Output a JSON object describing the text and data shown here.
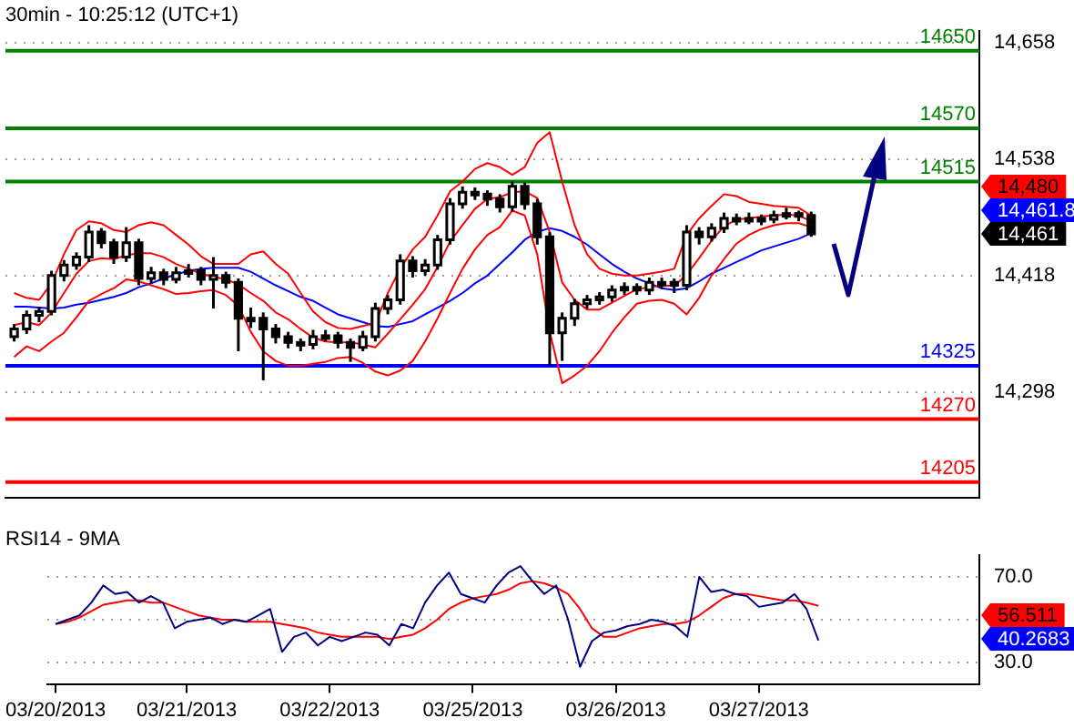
{
  "chart_data": [
    {
      "type": "candlestick",
      "title": "30min - 10:25:12 (UTC+1)",
      "categories": [
        null,
        null,
        null,
        null,
        null,
        null,
        null,
        null,
        null,
        null,
        null,
        null,
        null,
        null,
        null,
        null,
        null,
        null,
        null,
        null,
        null,
        null,
        null,
        null,
        null,
        null,
        null,
        null,
        null,
        null,
        null,
        null,
        null,
        null,
        null,
        null,
        null,
        null,
        null,
        null,
        null,
        null,
        null,
        null,
        null,
        null,
        null,
        null,
        null,
        null,
        null,
        null,
        null,
        null,
        null,
        null,
        null,
        null,
        null,
        null,
        null,
        null,
        null,
        null,
        null
      ],
      "ohlc": [
        [
          14355,
          14368,
          14350,
          14363
        ],
        [
          14363,
          14382,
          14358,
          14377
        ],
        [
          14377,
          14386,
          14370,
          14381
        ],
        [
          14381,
          14423,
          14377,
          14418
        ],
        [
          14418,
          14434,
          14412,
          14429
        ],
        [
          14429,
          14442,
          14424,
          14437
        ],
        [
          14437,
          14470,
          14432,
          14463
        ],
        [
          14463,
          14467,
          14446,
          14452
        ],
        [
          14452,
          14456,
          14430,
          14437
        ],
        [
          14437,
          14468,
          14432,
          14452
        ],
        [
          14452,
          14456,
          14408,
          14415
        ],
        [
          14415,
          14427,
          14410,
          14421
        ],
        [
          14421,
          14425,
          14408,
          14414
        ],
        [
          14414,
          14427,
          14410,
          14421
        ],
        [
          14421,
          14430,
          14416,
          14423
        ],
        [
          14423,
          14427,
          14408,
          14414
        ],
        [
          14414,
          14437,
          14384,
          14418
        ],
        [
          14418,
          14422,
          14405,
          14411
        ],
        [
          14411,
          14415,
          14340,
          14374
        ],
        [
          14374,
          14385,
          14364,
          14374
        ],
        [
          14374,
          14380,
          14310,
          14363
        ],
        [
          14363,
          14368,
          14348,
          14355
        ],
        [
          14355,
          14360,
          14343,
          14349
        ],
        [
          14349,
          14353,
          14340,
          14347
        ],
        [
          14347,
          14362,
          14342,
          14355
        ],
        [
          14355,
          14362,
          14350,
          14356
        ],
        [
          14356,
          14360,
          14343,
          14349
        ],
        [
          14349,
          14353,
          14329,
          14344
        ],
        [
          14344,
          14361,
          14340,
          14355
        ],
        [
          14355,
          14390,
          14350,
          14384
        ],
        [
          14384,
          14398,
          14378,
          14393
        ],
        [
          14393,
          14440,
          14388,
          14433
        ],
        [
          14433,
          14438,
          14416,
          14423
        ],
        [
          14423,
          14435,
          14418,
          14429
        ],
        [
          14429,
          14460,
          14424,
          14455
        ],
        [
          14455,
          14498,
          14450,
          14492
        ],
        [
          14492,
          14510,
          14487,
          14504
        ],
        [
          14504,
          14509,
          14496,
          14502
        ],
        [
          14502,
          14506,
          14490,
          14497
        ],
        [
          14497,
          14502,
          14483,
          14489
        ],
        [
          14489,
          14515,
          14484,
          14510
        ],
        [
          14510,
          14514,
          14486,
          14492
        ],
        [
          14492,
          14497,
          14450,
          14458
        ],
        [
          14458,
          14463,
          14325,
          14359
        ],
        [
          14359,
          14380,
          14330,
          14374
        ],
        [
          14374,
          14394,
          14366,
          14389
        ],
        [
          14389,
          14398,
          14384,
          14393
        ],
        [
          14393,
          14401,
          14388,
          14396
        ],
        [
          14396,
          14408,
          14391,
          14403
        ],
        [
          14403,
          14411,
          14398,
          14406
        ],
        [
          14406,
          14410,
          14398,
          14403
        ],
        [
          14403,
          14416,
          14398,
          14411
        ],
        [
          14411,
          14416,
          14404,
          14411
        ],
        [
          14411,
          14415,
          14400,
          14408
        ],
        [
          14408,
          14470,
          14403,
          14463
        ],
        [
          14463,
          14468,
          14450,
          14458
        ],
        [
          14458,
          14472,
          14453,
          14467
        ],
        [
          14467,
          14483,
          14462,
          14477
        ],
        [
          14477,
          14482,
          14470,
          14477
        ],
        [
          14477,
          14483,
          14471,
          14477
        ],
        [
          14477,
          14481,
          14470,
          14476
        ],
        [
          14476,
          14485,
          14472,
          14480
        ],
        [
          14480,
          14488,
          14476,
          14482
        ],
        [
          14482,
          14485,
          14474,
          14480
        ],
        [
          14480,
          14484,
          14458,
          14461
        ]
      ],
      "series": [
        {
          "type": "line",
          "color": "#ff0000",
          "values": [
            14400,
            14395,
            14393,
            14410,
            14440,
            14465,
            14474,
            14472,
            14465,
            14463,
            14470,
            14473,
            14470,
            14460,
            14450,
            14438,
            14430,
            14430,
            14430,
            14440,
            14443,
            14430,
            14420,
            14400,
            14381,
            14370,
            14364,
            14363,
            14366,
            14369,
            14400,
            14425,
            14445,
            14458,
            14480,
            14505,
            14515,
            14528,
            14534,
            14530,
            14522,
            14530,
            14555,
            14566,
            14515,
            14470,
            14440,
            14425,
            14420,
            14418,
            14418,
            14420,
            14422,
            14425,
            14460,
            14477,
            14490,
            14502,
            14500,
            14494,
            14492,
            14490,
            14489,
            14488,
            14480
          ]
        },
        {
          "type": "line",
          "color": "#ff0000",
          "values": [
            14367,
            14370,
            14367,
            14380,
            14400,
            14420,
            14433,
            14436,
            14435,
            14439,
            14441,
            14441,
            14437,
            14430,
            14425,
            14420,
            14417,
            14414,
            14409,
            14400,
            14392,
            14380,
            14373,
            14363,
            14354,
            14350,
            14349,
            14349,
            14347,
            14344,
            14358,
            14373,
            14388,
            14404,
            14427,
            14453,
            14470,
            14487,
            14497,
            14499,
            14504,
            14505,
            14498,
            14463,
            14411,
            14393,
            14383,
            14383,
            14390,
            14397,
            14404,
            14406,
            14408,
            14407,
            14419,
            14436,
            14454,
            14469,
            14476,
            14477,
            14479,
            14480,
            14481,
            14480,
            14474
          ]
        },
        {
          "type": "line",
          "color": "#ff0000",
          "values": [
            14334,
            14345,
            14340,
            14350,
            14359,
            14375,
            14392,
            14399,
            14405,
            14414,
            14412,
            14408,
            14404,
            14399,
            14400,
            14402,
            14403,
            14398,
            14387,
            14360,
            14340,
            14330,
            14325,
            14325,
            14327,
            14329,
            14333,
            14334,
            14328,
            14319,
            14315,
            14320,
            14330,
            14350,
            14374,
            14400,
            14425,
            14445,
            14460,
            14468,
            14485,
            14480,
            14440,
            14360,
            14307,
            14315,
            14325,
            14340,
            14359,
            14375,
            14389,
            14392,
            14393,
            14389,
            14378,
            14395,
            14418,
            14435,
            14451,
            14460,
            14466,
            14470,
            14472,
            14472,
            14468
          ]
        },
        {
          "type": "line",
          "color": "#0000ff",
          "values": [
            14386,
            14386,
            14385,
            14384,
            14385,
            14388,
            14390,
            14393,
            14396,
            14400,
            14406,
            14410,
            14415,
            14419,
            14423,
            14425,
            14426,
            14426,
            14426,
            14422,
            14415,
            14408,
            14402,
            14396,
            14392,
            14385,
            14378,
            14374,
            14370,
            14366,
            14365,
            14368,
            14371,
            14378,
            14385,
            14392,
            14400,
            14410,
            14418,
            14430,
            14442,
            14455,
            14463,
            14467,
            14464,
            14458,
            14450,
            14440,
            14430,
            14422,
            14415,
            14410,
            14405,
            14403,
            14405,
            14412,
            14420,
            14426,
            14432,
            14438,
            14444,
            14448,
            14452,
            14456,
            14461.8
          ]
        }
      ],
      "ylim": [
        14189,
        14670
      ],
      "yticks": [
        {
          "value": 14298,
          "label": "14,298"
        },
        {
          "value": 14418,
          "label": "14,418"
        },
        {
          "value": 14538,
          "label": "14,538"
        },
        {
          "value": 14658,
          "label": "14,658"
        }
      ],
      "grid": "y",
      "tick_labels": "y",
      "ref_lines": [
        {
          "axis": "y",
          "value": 14650,
          "label": "14650",
          "color": "#008000"
        },
        {
          "axis": "y",
          "value": 14570,
          "label": "14570",
          "color": "#008000"
        },
        {
          "axis": "y",
          "value": 14515,
          "label": "14515",
          "color": "#008000"
        },
        {
          "axis": "y",
          "value": 14325,
          "label": "14325",
          "color": "#0000ff"
        },
        {
          "axis": "y",
          "value": 14270,
          "label": "14270",
          "color": "#ff0000"
        },
        {
          "axis": "y",
          "value": 14205,
          "label": "14205",
          "color": "#ff0000"
        }
      ],
      "annotations": [
        "14,480",
        "14,461.8",
        "14,461"
      ]
    },
    {
      "type": "line",
      "title": "RSI14 - 9MA",
      "categories": [
        "03/20/2013",
        null,
        null,
        null,
        null,
        null,
        null,
        null,
        null,
        null,
        null,
        "03/21/2013",
        null,
        null,
        null,
        null,
        null,
        null,
        null,
        null,
        null,
        null,
        null,
        "03/22/2013",
        null,
        null,
        null,
        null,
        null,
        null,
        null,
        null,
        null,
        null,
        null,
        "03/25/2013",
        null,
        null,
        null,
        null,
        null,
        null,
        null,
        null,
        null,
        null,
        null,
        "03/26/2013",
        null,
        null,
        null,
        null,
        null,
        null,
        null,
        null,
        null,
        null,
        null,
        "03/27/2013",
        null,
        null,
        null,
        null,
        null
      ],
      "series": [
        {
          "color": "#000080",
          "values": [
            48,
            50,
            52,
            58,
            66,
            62,
            63,
            58,
            61,
            58,
            46,
            49,
            50,
            51,
            48,
            50,
            49,
            52,
            55,
            35,
            42,
            44,
            38,
            42,
            40,
            42,
            44,
            43,
            38,
            48,
            46,
            58,
            66,
            72,
            62,
            60,
            58,
            66,
            72,
            75,
            68,
            62,
            66,
            50,
            28,
            40,
            44,
            45,
            47,
            48,
            50,
            49,
            47,
            42,
            70,
            63,
            64,
            62,
            61,
            56,
            57,
            58,
            62,
            55,
            40.2683
          ]
        },
        {
          "color": "#ff0000",
          "values": [
            48,
            49,
            51,
            54,
            57,
            58,
            59,
            59,
            58,
            58,
            56,
            54,
            52,
            51,
            50,
            50,
            49,
            49,
            49,
            48,
            47,
            46,
            44,
            43,
            42,
            42,
            42,
            42,
            41,
            42,
            43,
            46,
            50,
            55,
            58,
            60,
            61,
            62,
            64,
            67,
            68,
            67,
            65,
            62,
            55,
            46,
            42,
            42,
            44,
            46,
            47,
            48,
            48,
            49,
            52,
            56,
            60,
            62,
            62,
            61,
            60,
            59,
            59,
            58,
            56.511
          ]
        }
      ],
      "ylim": [
        20,
        80
      ],
      "yticks": [
        {
          "value": 30,
          "label": "30.0"
        },
        {
          "value": 50,
          "label": null
        },
        {
          "value": 70,
          "label": "70.0"
        }
      ],
      "grid": "y",
      "annotations": [
        "56.511",
        "40.2683"
      ]
    }
  ]
}
